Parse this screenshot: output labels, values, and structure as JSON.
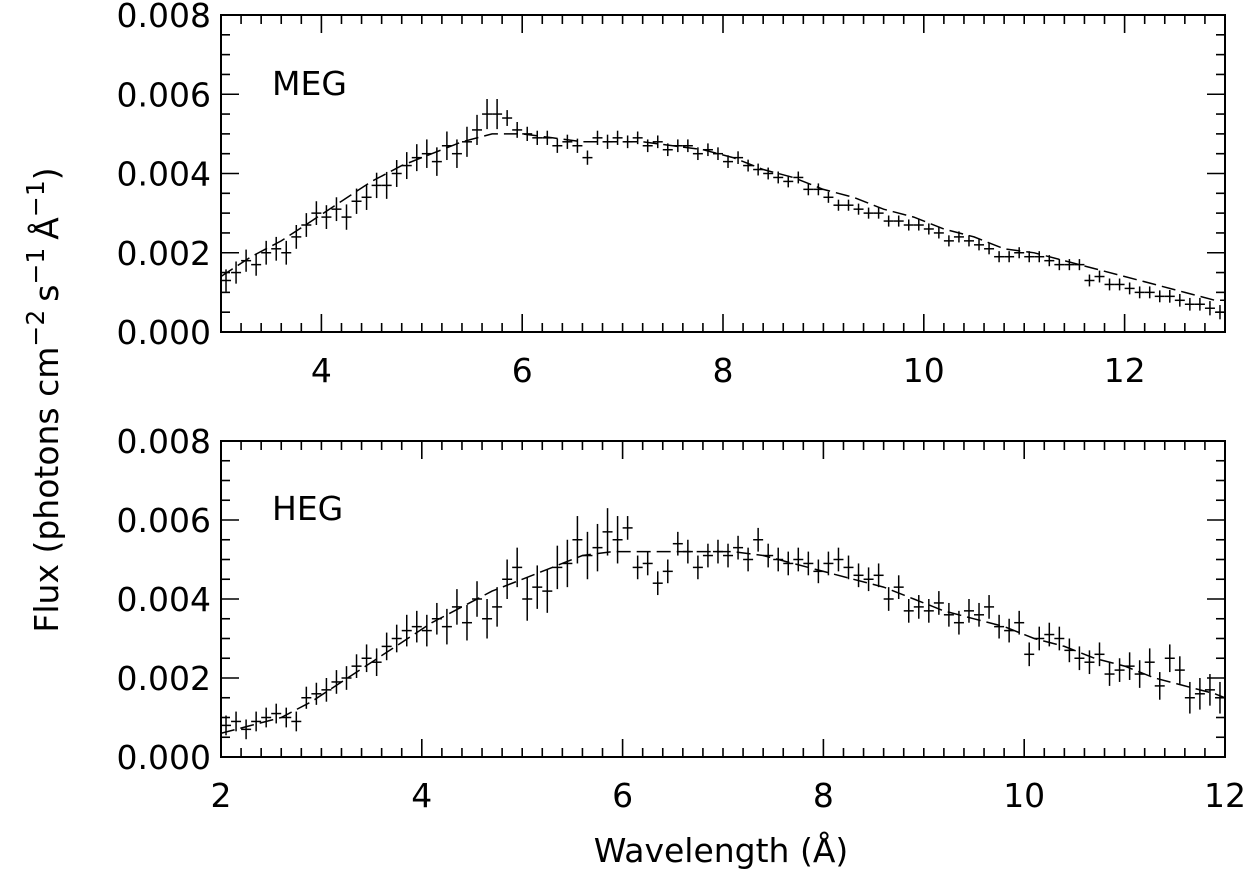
{
  "chart_data": [
    {
      "type": "scatter",
      "panel_label": "MEG",
      "xlim": [
        3,
        13
      ],
      "ylim": [
        0,
        0.008
      ],
      "xticks": [
        "4",
        "6",
        "8",
        "10",
        "12"
      ],
      "yticks": [
        "0.000",
        "0.002",
        "0.004",
        "0.006",
        "0.008"
      ],
      "xticks_labeled": false,
      "series": [
        {
          "kind": "data_with_errors",
          "x": [
            3.05,
            3.15,
            3.25,
            3.35,
            3.45,
            3.55,
            3.65,
            3.75,
            3.85,
            3.95,
            4.05,
            4.15,
            4.25,
            4.35,
            4.45,
            4.55,
            4.65,
            4.75,
            4.85,
            4.95,
            5.05,
            5.15,
            5.25,
            5.35,
            5.45,
            5.55,
            5.65,
            5.75,
            5.85,
            5.95,
            6.05,
            6.15,
            6.25,
            6.35,
            6.45,
            6.55,
            6.65,
            6.75,
            6.85,
            6.95,
            7.05,
            7.15,
            7.25,
            7.35,
            7.45,
            7.55,
            7.65,
            7.75,
            7.85,
            7.95,
            8.05,
            8.15,
            8.25,
            8.35,
            8.45,
            8.55,
            8.65,
            8.75,
            8.85,
            8.95,
            9.05,
            9.15,
            9.25,
            9.35,
            9.45,
            9.55,
            9.65,
            9.75,
            9.85,
            9.95,
            10.05,
            10.15,
            10.25,
            10.35,
            10.45,
            10.55,
            10.65,
            10.75,
            10.85,
            10.95,
            11.05,
            11.15,
            11.25,
            11.35,
            11.45,
            11.55,
            11.65,
            11.75,
            11.85,
            11.95,
            12.05,
            12.15,
            12.25,
            12.35,
            12.45,
            12.55,
            12.65,
            12.75,
            12.85,
            12.95
          ],
          "y": [
            0.0013,
            0.0015,
            0.0018,
            0.0017,
            0.002,
            0.0021,
            0.002,
            0.0024,
            0.0027,
            0.003,
            0.0029,
            0.0031,
            0.0029,
            0.0033,
            0.0034,
            0.0037,
            0.0037,
            0.004,
            0.0042,
            0.0044,
            0.0045,
            0.0043,
            0.0047,
            0.0045,
            0.0048,
            0.0051,
            0.0055,
            0.0055,
            0.0054,
            0.0051,
            0.005,
            0.0049,
            0.0049,
            0.0047,
            0.0048,
            0.0047,
            0.0044,
            0.0049,
            0.0048,
            0.0049,
            0.0048,
            0.0049,
            0.0047,
            0.0048,
            0.0046,
            0.0047,
            0.0047,
            0.0045,
            0.0046,
            0.0045,
            0.0043,
            0.0044,
            0.0042,
            0.0041,
            0.004,
            0.0039,
            0.0038,
            0.0039,
            0.0036,
            0.0036,
            0.0034,
            0.0032,
            0.0032,
            0.0031,
            0.003,
            0.003,
            0.0028,
            0.0028,
            0.0027,
            0.0027,
            0.0026,
            0.0025,
            0.0023,
            0.0024,
            0.0023,
            0.0022,
            0.0021,
            0.0019,
            0.0019,
            0.002,
            0.0019,
            0.0019,
            0.0018,
            0.0017,
            0.0017,
            0.0017,
            0.0013,
            0.0014,
            0.0012,
            0.0012,
            0.0011,
            0.001,
            0.001,
            0.0009,
            0.0009,
            0.0008,
            0.0007,
            0.0007,
            0.0006,
            0.0005
          ],
          "yerr": [
            0.00028,
            0.00028,
            0.00028,
            0.00028,
            0.0003,
            0.0003,
            0.0003,
            0.0003,
            0.0003,
            0.0003,
            0.0003,
            0.0003,
            0.00032,
            0.00032,
            0.00032,
            0.00032,
            0.00034,
            0.00034,
            0.00034,
            0.00034,
            0.00036,
            0.00036,
            0.00036,
            0.00036,
            0.00038,
            0.00038,
            0.00038,
            0.00038,
            0.0002,
            0.0002,
            0.00018,
            0.00018,
            0.00018,
            0.00018,
            0.00018,
            0.00018,
            0.00018,
            0.00018,
            0.00018,
            0.00018,
            0.00016,
            0.00016,
            0.00016,
            0.00016,
            0.00016,
            0.00016,
            0.00016,
            0.00016,
            0.00016,
            0.00016,
            0.00016,
            0.00016,
            0.00015,
            0.00015,
            0.00015,
            0.00015,
            0.00015,
            0.00015,
            0.00015,
            0.00015,
            0.00014,
            0.00014,
            0.00014,
            0.00014,
            0.00014,
            0.00014,
            0.00014,
            0.00014,
            0.00014,
            0.00014,
            0.00014,
            0.00014,
            0.00014,
            0.00014,
            0.00014,
            0.00014,
            0.00014,
            0.00014,
            0.00014,
            0.00014,
            0.00014,
            0.00014,
            0.00014,
            0.00014,
            0.00014,
            0.00014,
            0.00015,
            0.00015,
            0.00015,
            0.00015,
            0.00015,
            0.00015,
            0.00015,
            0.00015,
            0.00016,
            0.00016,
            0.00016,
            0.00016,
            0.00018,
            0.00018
          ]
        },
        {
          "kind": "model_dashed",
          "x": [
            3.0,
            3.3,
            3.6,
            3.9,
            4.2,
            4.5,
            4.8,
            5.1,
            5.4,
            5.7,
            6.0,
            6.3,
            6.6,
            6.9,
            7.2,
            7.5,
            7.8,
            8.1,
            8.4,
            8.7,
            9.0,
            9.3,
            9.6,
            9.9,
            10.2,
            10.5,
            10.8,
            11.1,
            11.4,
            11.7,
            12.0,
            12.3,
            12.6,
            12.9,
            13.0
          ],
          "y": [
            0.0014,
            0.0019,
            0.0023,
            0.0028,
            0.0033,
            0.0038,
            0.0042,
            0.0045,
            0.0048,
            0.005,
            0.005,
            0.0049,
            0.0048,
            0.0048,
            0.0048,
            0.0047,
            0.0046,
            0.0044,
            0.0041,
            0.0039,
            0.0036,
            0.0034,
            0.0031,
            0.0029,
            0.0026,
            0.0024,
            0.0021,
            0.002,
            0.0018,
            0.0016,
            0.0014,
            0.0012,
            0.001,
            0.0008,
            0.0008
          ]
        }
      ]
    },
    {
      "type": "scatter",
      "panel_label": "HEG",
      "xlim": [
        2,
        12
      ],
      "ylim": [
        0,
        0.008
      ],
      "xticks": [
        "2",
        "4",
        "6",
        "8",
        "10",
        "12"
      ],
      "yticks": [
        "0.000",
        "0.002",
        "0.004",
        "0.006",
        "0.008"
      ],
      "xticks_labeled": true,
      "xlabel": "Wavelength (Å)",
      "series": [
        {
          "kind": "data_with_errors",
          "x": [
            2.05,
            2.15,
            2.25,
            2.35,
            2.45,
            2.55,
            2.65,
            2.75,
            2.85,
            2.95,
            3.05,
            3.15,
            3.25,
            3.35,
            3.45,
            3.55,
            3.65,
            3.75,
            3.85,
            3.95,
            4.05,
            4.15,
            4.25,
            4.35,
            4.45,
            4.55,
            4.65,
            4.75,
            4.85,
            4.95,
            5.05,
            5.15,
            5.25,
            5.35,
            5.45,
            5.55,
            5.65,
            5.75,
            5.85,
            5.95,
            6.05,
            6.15,
            6.25,
            6.35,
            6.45,
            6.55,
            6.65,
            6.75,
            6.85,
            6.95,
            7.05,
            7.15,
            7.25,
            7.35,
            7.45,
            7.55,
            7.65,
            7.75,
            7.85,
            7.95,
            8.05,
            8.15,
            8.25,
            8.35,
            8.45,
            8.55,
            8.65,
            8.75,
            8.85,
            8.95,
            9.05,
            9.15,
            9.25,
            9.35,
            9.45,
            9.55,
            9.65,
            9.75,
            9.85,
            9.95,
            10.05,
            10.15,
            10.25,
            10.35,
            10.45,
            10.55,
            10.65,
            10.75,
            10.85,
            10.95,
            11.05,
            11.15,
            11.25,
            11.35,
            11.45,
            11.55,
            11.65,
            11.75,
            11.85,
            11.95
          ],
          "y": [
            0.0008,
            0.0009,
            0.0007,
            0.0009,
            0.001,
            0.0011,
            0.001,
            0.0009,
            0.0015,
            0.0016,
            0.0017,
            0.0019,
            0.002,
            0.0023,
            0.0025,
            0.0024,
            0.0028,
            0.003,
            0.0032,
            0.0033,
            0.0032,
            0.0035,
            0.0033,
            0.0038,
            0.0034,
            0.004,
            0.0035,
            0.0038,
            0.0045,
            0.0048,
            0.004,
            0.0043,
            0.0042,
            0.0048,
            0.0049,
            0.0055,
            0.0051,
            0.0053,
            0.0057,
            0.0055,
            0.0058,
            0.0048,
            0.0049,
            0.0044,
            0.0047,
            0.0054,
            0.0052,
            0.0048,
            0.0051,
            0.0052,
            0.0051,
            0.0053,
            0.005,
            0.0055,
            0.0051,
            0.005,
            0.0049,
            0.005,
            0.0049,
            0.0047,
            0.0049,
            0.005,
            0.0048,
            0.0046,
            0.0045,
            0.0046,
            0.004,
            0.0043,
            0.0037,
            0.0038,
            0.0037,
            0.0039,
            0.0036,
            0.0034,
            0.0037,
            0.0036,
            0.0038,
            0.0033,
            0.0032,
            0.0034,
            0.0026,
            0.003,
            0.0031,
            0.003,
            0.0027,
            0.0025,
            0.0024,
            0.0026,
            0.0021,
            0.0022,
            0.0023,
            0.0021,
            0.0024,
            0.0018,
            0.0025,
            0.0022,
            0.0015,
            0.0016,
            0.0017,
            0.0015
          ],
          "yerr": [
            0.00025,
            0.00025,
            0.00025,
            0.00025,
            0.00025,
            0.00025,
            0.00025,
            0.00025,
            0.00028,
            0.00028,
            0.0003,
            0.0003,
            0.0003,
            0.0003,
            0.00035,
            0.00035,
            0.00035,
            0.00035,
            0.0004,
            0.0004,
            0.0004,
            0.0004,
            0.00045,
            0.00045,
            0.00045,
            0.00045,
            0.0005,
            0.0005,
            0.0005,
            0.0005,
            0.00055,
            0.00055,
            0.00055,
            0.00055,
            0.0006,
            0.0006,
            0.0006,
            0.0006,
            0.0006,
            0.0006,
            0.0003,
            0.0003,
            0.0003,
            0.0003,
            0.0003,
            0.0003,
            0.0003,
            0.0003,
            0.0003,
            0.0003,
            0.0003,
            0.0003,
            0.0003,
            0.0003,
            0.0003,
            0.0003,
            0.0003,
            0.0003,
            0.0003,
            0.0003,
            0.0003,
            0.0003,
            0.0003,
            0.0003,
            0.0003,
            0.0003,
            0.0003,
            0.0003,
            0.0003,
            0.0003,
            0.0003,
            0.0003,
            0.0003,
            0.0003,
            0.0003,
            0.0003,
            0.0003,
            0.0003,
            0.0003,
            0.0003,
            0.0003,
            0.0003,
            0.0003,
            0.0003,
            0.0003,
            0.0003,
            0.0003,
            0.0003,
            0.0003,
            0.0003,
            0.00035,
            0.00035,
            0.00035,
            0.00035,
            0.00035,
            0.00035,
            0.0004,
            0.0004,
            0.0004,
            0.0004
          ]
        },
        {
          "kind": "model_dashed",
          "x": [
            2.0,
            2.3,
            2.6,
            2.9,
            3.2,
            3.5,
            3.8,
            4.1,
            4.4,
            4.7,
            5.0,
            5.3,
            5.6,
            5.9,
            6.2,
            6.5,
            6.8,
            7.1,
            7.4,
            7.7,
            8.0,
            8.3,
            8.6,
            8.9,
            9.2,
            9.5,
            9.8,
            10.1,
            10.4,
            10.7,
            11.0,
            11.3,
            11.6,
            11.9,
            12.0
          ],
          "y": [
            0.0006,
            0.0008,
            0.001,
            0.0014,
            0.0019,
            0.0024,
            0.0029,
            0.0034,
            0.0038,
            0.0042,
            0.0045,
            0.0048,
            0.0051,
            0.0052,
            0.0052,
            0.0052,
            0.0052,
            0.0052,
            0.0051,
            0.0049,
            0.0047,
            0.0045,
            0.0043,
            0.004,
            0.0037,
            0.0035,
            0.0033,
            0.003,
            0.0028,
            0.0025,
            0.0023,
            0.002,
            0.0018,
            0.0016,
            0.0015
          ]
        }
      ]
    }
  ],
  "shared_ylabel": "Flux (photons cm⁻² s⁻¹ Å⁻¹)",
  "ylabel_main": "Flux (photons cm",
  "ylabel_sup1": "−2",
  "ylabel_s": "s",
  "ylabel_sup2": "−1",
  "ylabel_A": "Å",
  "ylabel_sup3": "−1",
  "ylabel_close": ")",
  "xlabel": "Wavelength (Å)"
}
